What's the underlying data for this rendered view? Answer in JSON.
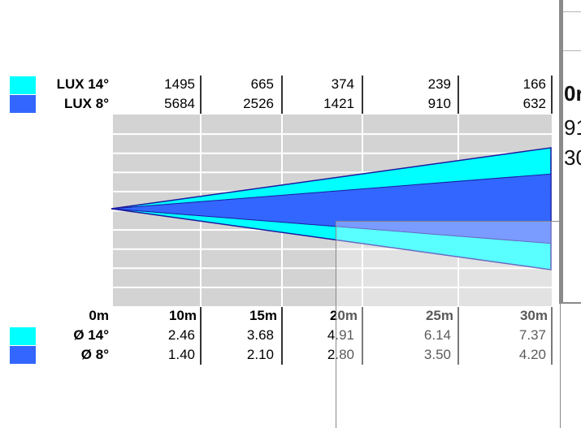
{
  "colors": {
    "beam_14": "#00ffff",
    "beam_8": "#3366ff",
    "grid": "#d3d3d3",
    "outline": "#1a1aa0"
  },
  "lux_legend": [
    {
      "label": "LUX 14°",
      "color": "#00ffff"
    },
    {
      "label": "LUX 8°",
      "color": "#3366ff"
    }
  ],
  "diameter_legend": [
    {
      "label": "Ø 14°",
      "color": "#00ffff"
    },
    {
      "label": "Ø 8°",
      "color": "#3366ff"
    }
  ],
  "chart_data": {
    "type": "table",
    "distances": [
      "0m",
      "10m",
      "15m",
      "20m",
      "25m",
      "30m"
    ],
    "lux_14": [
      "1495",
      "665",
      "374",
      "239",
      "166"
    ],
    "lux_8": [
      "5684",
      "2526",
      "1421",
      "910",
      "632"
    ],
    "diameter_14": [
      "2.46",
      "3.68",
      "4.91",
      "6.14",
      "7.37"
    ],
    "diameter_8": [
      "1.40",
      "2.10",
      "2.80",
      "3.50",
      "4.20"
    ],
    "beam_angles_deg": [
      14,
      8
    ]
  },
  "right_window": {
    "fragments": [
      "0r",
      "91",
      "30"
    ]
  }
}
